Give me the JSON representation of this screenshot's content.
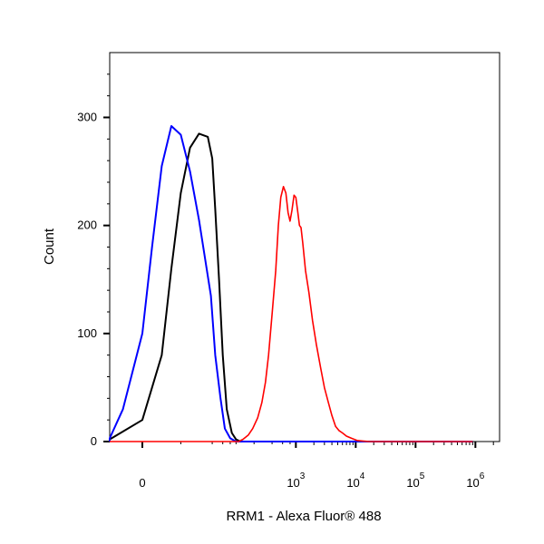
{
  "chart_data": {
    "type": "line",
    "xlabel": "RRM1 - Alexa Fluor® 488",
    "ylabel": "Count",
    "x_scale": "biexponential",
    "ylim": [
      0,
      360
    ],
    "y_ticks": [
      {
        "value": 0,
        "label": "0"
      },
      {
        "value": 100,
        "label": "100"
      },
      {
        "value": 200,
        "label": "200"
      },
      {
        "value": 300,
        "label": "300"
      }
    ],
    "x_ticks": [
      {
        "value": 0,
        "label": "0"
      },
      {
        "value": 1000,
        "label": "10",
        "exp": "3"
      },
      {
        "value": 10000,
        "label": "10",
        "exp": "4"
      },
      {
        "value": 100000,
        "label": "10",
        "exp": "5"
      },
      {
        "value": 1000000,
        "label": "10",
        "exp": "6"
      }
    ],
    "grid": false,
    "series": [
      {
        "color": "#000000",
        "points": [
          [
            -60,
            0
          ],
          [
            -20,
            2
          ],
          [
            0,
            20
          ],
          [
            10,
            80
          ],
          [
            15,
            160
          ],
          [
            20,
            230
          ],
          [
            25,
            272
          ],
          [
            30,
            285
          ],
          [
            35,
            282
          ],
          [
            40,
            262
          ],
          [
            45,
            215
          ],
          [
            52,
            150
          ],
          [
            60,
            80
          ],
          [
            70,
            30
          ],
          [
            85,
            8
          ],
          [
            100,
            2
          ],
          [
            120,
            0
          ],
          [
            150000,
            0
          ],
          [
            900000,
            0
          ]
        ]
      },
      {
        "color": "#0000ff",
        "points": [
          [
            -60,
            0
          ],
          [
            -25,
            3
          ],
          [
            -10,
            30
          ],
          [
            0,
            100
          ],
          [
            5,
            180
          ],
          [
            10,
            255
          ],
          [
            15,
            292
          ],
          [
            20,
            284
          ],
          [
            25,
            250
          ],
          [
            30,
            205
          ],
          [
            38,
            135
          ],
          [
            45,
            80
          ],
          [
            55,
            40
          ],
          [
            65,
            12
          ],
          [
            80,
            3
          ],
          [
            100,
            0
          ],
          [
            150000,
            0
          ],
          [
            900000,
            0
          ]
        ]
      },
      {
        "color": "#ff0000",
        "points": [
          [
            -60,
            0
          ],
          [
            110,
            0
          ],
          [
            130,
            2
          ],
          [
            160,
            6
          ],
          [
            190,
            12
          ],
          [
            230,
            22
          ],
          [
            270,
            36
          ],
          [
            310,
            55
          ],
          [
            350,
            80
          ],
          [
            400,
            118
          ],
          [
            460,
            158
          ],
          [
            510,
            200
          ],
          [
            560,
            226
          ],
          [
            620,
            236
          ],
          [
            680,
            230
          ],
          [
            740,
            212
          ],
          [
            800,
            204
          ],
          [
            860,
            214
          ],
          [
            930,
            228
          ],
          [
            1000,
            226
          ],
          [
            1080,
            212
          ],
          [
            1150,
            200
          ],
          [
            1220,
            198
          ],
          [
            1300,
            184
          ],
          [
            1450,
            158
          ],
          [
            1650,
            138
          ],
          [
            1900,
            112
          ],
          [
            2200,
            90
          ],
          [
            2600,
            68
          ],
          [
            3000,
            50
          ],
          [
            3500,
            36
          ],
          [
            4000,
            24
          ],
          [
            4600,
            14
          ],
          [
            5300,
            10
          ],
          [
            6000,
            8
          ],
          [
            7000,
            5
          ],
          [
            8500,
            3
          ],
          [
            10500,
            1
          ],
          [
            13000,
            0.5
          ],
          [
            17000,
            0
          ],
          [
            30000,
            0
          ],
          [
            900000,
            0
          ]
        ]
      }
    ]
  }
}
